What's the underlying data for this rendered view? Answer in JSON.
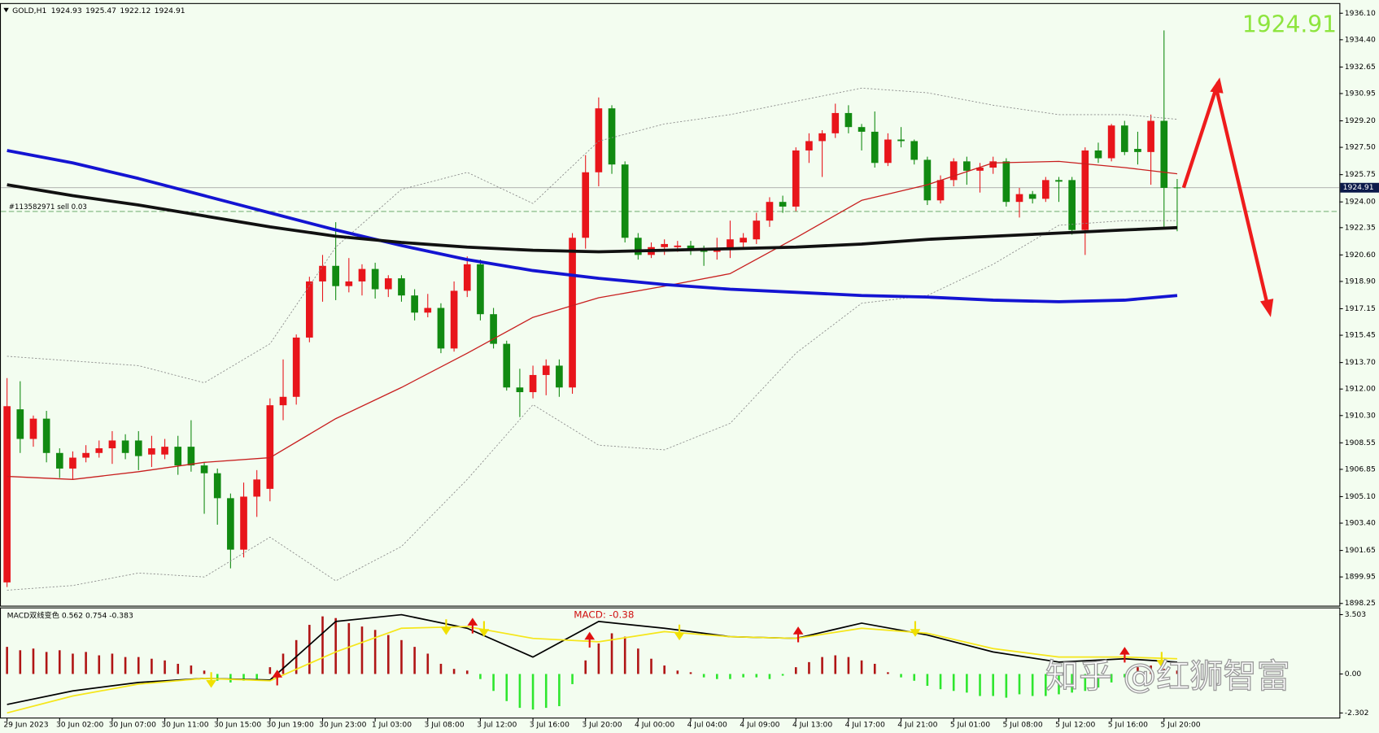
{
  "chart_data": {
    "type": "candlestick",
    "symbol": "GOLD,H1",
    "big_price_color": "#8ee53f",
    "bull_color": "#e8151b",
    "bear_color": "#118a11",
    "categories": [
      "29 Jun 2023",
      null,
      null,
      null,
      "30 Jun 02:00",
      null,
      null,
      null,
      "30 Jun 07:00",
      null,
      null,
      null,
      "30 Jun 11:00",
      null,
      null,
      null,
      "30 Jun 15:00",
      null,
      null,
      null,
      "30 Jun 19:00",
      null,
      null,
      null,
      "30 Jun 23:00",
      null,
      null,
      null,
      "1 Jul 03:00",
      null,
      null,
      null,
      "3 Jul 08:00",
      null,
      null,
      null,
      "3 Jul 12:00",
      null,
      null,
      null,
      "3 Jul 16:00",
      null,
      null,
      null,
      "3 Jul 20:00",
      null,
      null,
      null,
      "4 Jul 00:00",
      null,
      null,
      null,
      "4 Jul 04:00",
      null,
      null,
      null,
      "4 Jul 09:00",
      null,
      null,
      null,
      "4 Jul 13:00",
      null,
      null,
      null,
      "4 Jul 17:00",
      null,
      null,
      null,
      "4 Jul 21:00",
      null,
      null,
      null,
      "5 Jul 01:00",
      null,
      null,
      null,
      "5 Jul 08:00",
      null,
      null,
      null,
      "5 Jul 12:00",
      null,
      null,
      null,
      "5 Jul 16:00",
      null,
      null,
      null,
      "5 Jul 20:00",
      null
    ],
    "open": [
      1899.6,
      1910.7,
      1908.8,
      1910.1,
      1907.9,
      1906.9,
      1907.6,
      1907.9,
      1908.2,
      1908.7,
      1908.7,
      1907.8,
      1907.8,
      1908.3,
      1908.3,
      1907.1,
      1906.6,
      1905.0,
      1901.7,
      1905.1,
      1905.6,
      1910.96,
      1911.5,
      1915.3,
      1918.9,
      1919.9,
      1918.6,
      1918.9,
      1919.7,
      1918.4,
      1919.1,
      1918.0,
      1916.9,
      1917.2,
      1914.6,
      1918.3,
      1920.0,
      1916.8,
      1914.9,
      1912.1,
      1911.8,
      1912.9,
      1913.5,
      1912.1,
      1921.7,
      1925.9,
      1930.0,
      1926.4,
      1921.7,
      1920.6,
      1921.1,
      1921.1,
      1921.2,
      1920.9,
      1920.8,
      1921.0,
      1921.4,
      1921.6,
      1922.8,
      1924.0,
      1923.7,
      1927.3,
      1927.9,
      1928.4,
      1929.7,
      1928.8,
      1928.5,
      1926.5,
      1928.0,
      1927.9,
      1926.7,
      1924.1,
      1925.4,
      1926.6,
      1926.0,
      1926.2,
      1926.6,
      1924.0,
      1924.5,
      1924.2,
      1925.4,
      1925.4,
      1922.2,
      1927.3,
      1926.8,
      1928.9,
      1927.4,
      1927.2,
      1929.2,
      1924.93
    ],
    "high": [
      1912.7,
      1912.5,
      1910.3,
      1910.6,
      1908.2,
      1908.0,
      1908.4,
      1908.7,
      1909.3,
      1909.1,
      1909.3,
      1909.0,
      1908.8,
      1909.0,
      1910.0,
      1907.3,
      1906.9,
      1905.3,
      1906.0,
      1906.8,
      1911.4,
      1913.9,
      1915.5,
      1919.2,
      1920.6,
      1922.7,
      1920.4,
      1920.0,
      1920.1,
      1919.3,
      1919.3,
      1918.4,
      1918.1,
      1917.5,
      1918.9,
      1920.5,
      1920.3,
      1917.2,
      1915.1,
      1913.3,
      1913.5,
      1913.9,
      1913.9,
      1922.0,
      1927.0,
      1930.7,
      1930.2,
      1926.6,
      1922.0,
      1921.4,
      1921.6,
      1921.5,
      1921.5,
      1921.2,
      1921.7,
      1922.8,
      1922.0,
      1923.3,
      1924.3,
      1924.4,
      1927.5,
      1928.4,
      1928.6,
      1930.3,
      1930.2,
      1929.0,
      1929.8,
      1928.4,
      1928.8,
      1928.0,
      1926.9,
      1925.7,
      1926.8,
      1926.9,
      1926.5,
      1926.9,
      1926.8,
      1924.9,
      1924.7,
      1925.6,
      1925.6,
      1925.6,
      1927.5,
      1927.8,
      1929.0,
      1929.2,
      1928.5,
      1929.6,
      1935.0,
      1925.47
    ],
    "low": [
      1899.3,
      1907.9,
      1908.3,
      1907.3,
      1906.3,
      1906.2,
      1907.3,
      1907.6,
      1907.2,
      1907.5,
      1906.8,
      1907.0,
      1907.5,
      1906.5,
      1906.7,
      1904.0,
      1903.3,
      1900.5,
      1901.2,
      1903.8,
      1904.8,
      1910.0,
      1911.0,
      1915.0,
      1917.6,
      1917.7,
      1918.2,
      1918.0,
      1917.8,
      1917.9,
      1917.6,
      1916.4,
      1916.6,
      1914.3,
      1914.4,
      1917.9,
      1916.4,
      1914.6,
      1911.9,
      1910.2,
      1911.4,
      1911.6,
      1911.5,
      1911.7,
      1921.0,
      1925.0,
      1925.8,
      1921.4,
      1920.3,
      1920.4,
      1920.6,
      1920.8,
      1920.6,
      1919.9,
      1920.3,
      1920.4,
      1921.1,
      1921.3,
      1922.4,
      1923.3,
      1923.4,
      1926.5,
      1925.6,
      1928.1,
      1928.4,
      1927.3,
      1926.2,
      1926.3,
      1927.5,
      1926.4,
      1923.8,
      1923.9,
      1925.0,
      1925.1,
      1924.6,
      1925.8,
      1923.7,
      1923.0,
      1923.9,
      1924.0,
      1924.0,
      1921.9,
      1920.6,
      1926.5,
      1926.6,
      1927.0,
      1926.4,
      1925.1,
      1922.4,
      1922.12
    ],
    "close": [
      1910.9,
      1908.8,
      1910.1,
      1907.9,
      1906.9,
      1907.6,
      1907.9,
      1908.2,
      1908.7,
      1907.9,
      1907.7,
      1908.2,
      1908.3,
      1907.1,
      1907.1,
      1906.6,
      1905.0,
      1901.7,
      1905.1,
      1906.2,
      1910.96,
      1911.5,
      1915.3,
      1918.9,
      1919.9,
      1918.6,
      1918.9,
      1919.7,
      1918.4,
      1919.1,
      1918.0,
      1916.9,
      1917.2,
      1914.6,
      1918.3,
      1920.0,
      1916.8,
      1914.9,
      1912.1,
      1911.8,
      1912.9,
      1913.5,
      1912.1,
      1921.7,
      1925.9,
      1930.0,
      1926.4,
      1921.7,
      1920.6,
      1921.1,
      1921.3,
      1921.2,
      1920.9,
      1920.8,
      1921.0,
      1921.6,
      1921.7,
      1922.8,
      1924.0,
      1923.7,
      1927.3,
      1927.9,
      1928.4,
      1929.7,
      1928.8,
      1928.5,
      1926.5,
      1928.0,
      1927.9,
      1926.7,
      1924.1,
      1925.4,
      1926.6,
      1926.0,
      1926.2,
      1926.6,
      1924.0,
      1924.5,
      1924.2,
      1925.4,
      1925.3,
      1922.2,
      1927.3,
      1926.8,
      1928.9,
      1927.2,
      1927.2,
      1929.2,
      1924.9,
      1924.91
    ],
    "ylim": [
      1898.1,
      1936.7
    ],
    "yticks": [
      {
        "value": 1936.1,
        "label": "1936.10"
      },
      {
        "value": 1934.4,
        "label": "1934.40"
      },
      1932.65,
      1930.95,
      {
        "value": 1929.2,
        "label": "1929.20"
      },
      {
        "value": 1927.5,
        "label": "1927.50"
      },
      1925.75,
      {
        "value": 1924.0,
        "label": "1924.00"
      },
      1922.35,
      {
        "value": 1920.6,
        "label": "1920.60"
      },
      {
        "value": 1918.9,
        "label": "1918.90"
      },
      1917.15,
      1915.45,
      {
        "value": 1913.7,
        "label": "1913.70"
      },
      {
        "value": 1912.0,
        "label": "1912.00"
      },
      {
        "value": 1910.3,
        "label": "1910.30"
      },
      1908.55,
      1906.85,
      {
        "value": 1905.1,
        "label": "1905.10"
      },
      {
        "value": 1903.4,
        "label": "1903.40"
      },
      1901.65,
      1899.95,
      1898.25
    ],
    "grid": false,
    "trade_level": 1923.39,
    "trade_label": "#113582971 sell 0.03",
    "overlay_x": [
      0,
      5,
      10,
      15,
      20,
      25,
      30,
      35,
      40,
      45,
      50,
      55,
      60,
      65,
      70,
      75,
      80,
      85,
      89
    ],
    "overlays": [
      {
        "color": "#8a8a8a",
        "style": "dotted",
        "values": [
          1914.1,
          1913.8,
          1913.5,
          1912.4,
          1914.9,
          1921.1,
          1924.8,
          1925.9,
          1923.9,
          1927.9,
          1929.0,
          1929.6,
          1930.45,
          1931.3,
          1931.0,
          1930.2,
          1929.6,
          1929.6,
          1929.3
        ]
      },
      {
        "color": "#8a8a8a",
        "style": "dotted",
        "values": [
          1899.1,
          1899.4,
          1900.2,
          1899.95,
          1902.5,
          1899.7,
          1901.9,
          1906.2,
          1911.0,
          1908.4,
          1908.1,
          1909.8,
          1914.3,
          1917.5,
          1918.0,
          1920.0,
          1922.5,
          1922.8,
          1922.8
        ]
      },
      {
        "color": "#c81e1e",
        "style": "thin",
        "values": [
          1906.4,
          1906.2,
          1906.7,
          1907.3,
          1907.6,
          1910.1,
          1912.1,
          1914.3,
          1916.6,
          1917.85,
          1918.6,
          1919.4,
          1921.7,
          1924.1,
          1925.1,
          1926.5,
          1926.6,
          1926.2,
          1925.8
        ]
      },
      {
        "color": "#1414d2",
        "style": "thick",
        "values": [
          1927.3,
          1926.5,
          1925.5,
          1924.4,
          1923.3,
          1922.2,
          1921.2,
          1920.3,
          1919.6,
          1919.1,
          1918.7,
          1918.4,
          1918.2,
          1918.0,
          1917.9,
          1917.7,
          1917.6,
          1917.7,
          1918.0
        ]
      },
      {
        "color": "#111111",
        "style": "thick",
        "values": [
          1925.1,
          1924.4,
          1923.8,
          1923.1,
          1922.4,
          1921.8,
          1921.4,
          1921.1,
          1920.9,
          1920.8,
          1920.9,
          1921.0,
          1921.1,
          1921.3,
          1921.6,
          1921.8,
          1922.0,
          1922.2,
          1922.35
        ]
      }
    ],
    "macd": {
      "label": "MACD双线变色 0.562 0.754 -0.383",
      "annotation": "MACD: -0.38",
      "ylim": [
        -2.6,
        3.9
      ],
      "yticks": [
        3.503,
        {
          "value": 0,
          "label": "0.00"
        },
        -2.302
      ],
      "pos_color": "#b01515",
      "neg_color": "#2ee62e",
      "histogram": [
        1.6,
        1.4,
        1.5,
        1.3,
        1.4,
        1.2,
        1.3,
        1.1,
        1.2,
        1.0,
        1.0,
        0.9,
        0.8,
        0.6,
        0.5,
        0.2,
        -0.4,
        -0.5,
        -0.4,
        -0.3,
        0.4,
        1.2,
        2.0,
        2.9,
        3.4,
        3.3,
        3.0,
        2.8,
        2.6,
        2.3,
        2.0,
        1.6,
        1.2,
        0.6,
        0.3,
        0.2,
        -0.3,
        -1.0,
        -1.6,
        -2.0,
        -2.1,
        -2.0,
        -1.9,
        -0.6,
        0.8,
        1.8,
        2.4,
        2.2,
        1.5,
        0.9,
        0.5,
        0.2,
        0.1,
        -0.2,
        -0.3,
        -0.3,
        -0.2,
        -0.2,
        -0.3,
        -0.1,
        0.4,
        0.7,
        1.0,
        1.1,
        1.0,
        0.8,
        0.6,
        0.1,
        -0.2,
        -0.4,
        -0.7,
        -0.9,
        -1.0,
        -1.1,
        -1.3,
        -1.3,
        -1.4,
        -1.2,
        -1.3,
        -1.3,
        -1.2,
        -1.1,
        -1.0,
        -0.8,
        -0.5,
        -0.2,
        0.4,
        0.5,
        0.3,
        0.2
      ],
      "lines": [
        {
          "color": "#000000",
          "values": [
            -1.8,
            -1.0,
            -0.5,
            -0.26,
            -0.36,
            3.1,
            3.5,
            2.7,
            1.0,
            3.1,
            2.7,
            2.2,
            2.1,
            3.0,
            2.3,
            1.3,
            0.7,
            0.9,
            0.7
          ]
        },
        {
          "color": "#f5e61a",
          "values": [
            -2.3,
            -1.3,
            -0.6,
            -0.26,
            -0.4,
            1.3,
            2.7,
            2.8,
            2.1,
            1.9,
            2.5,
            2.2,
            2.1,
            2.7,
            2.4,
            1.5,
            1.0,
            1.0,
            0.9
          ]
        }
      ]
    },
    "watermark": "知乎 @红狮智富"
  }
}
